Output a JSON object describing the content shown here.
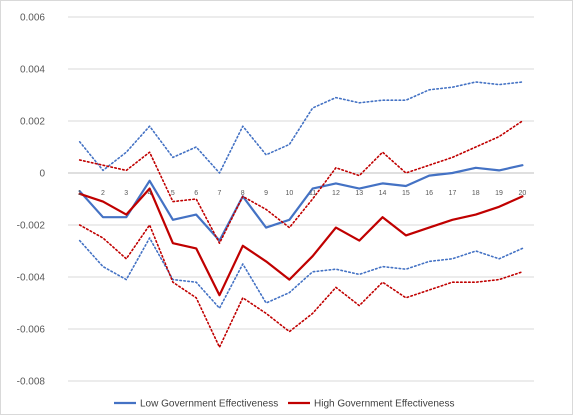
{
  "chart_data": {
    "type": "line",
    "x": [
      "1",
      "2",
      "3",
      "4",
      "5",
      "6",
      "7",
      "8",
      "9",
      "10",
      "11",
      "12",
      "13",
      "14",
      "15",
      "16",
      "17",
      "18",
      "19",
      "20"
    ],
    "ylim": [
      -0.008,
      0.006
    ],
    "yticks": [
      0.006,
      0.004,
      0.002,
      0,
      -0.002,
      -0.004,
      -0.006,
      -0.008
    ],
    "ytick_labels": [
      "0.006",
      "0.004",
      "0.002",
      "0",
      "-0.002",
      "-0.004",
      "-0.006",
      "-0.008"
    ],
    "grid": "horizontal",
    "legend_position": "bottom",
    "title": "",
    "xlabel": "",
    "ylabel": "",
    "series": [
      {
        "name": "Low Government Effectiveness",
        "color": "#4472c4",
        "style": "solid",
        "values": [
          -0.0007,
          -0.0017,
          -0.0017,
          -0.0003,
          -0.0018,
          -0.0016,
          -0.0026,
          -0.0009,
          -0.0021,
          -0.0018,
          -0.0006,
          -0.0004,
          -0.0006,
          -0.0004,
          -0.0005,
          -0.0001,
          0.0,
          0.0002,
          0.0001,
          0.0003
        ]
      },
      {
        "color": "#4472c4",
        "style": "dotted",
        "values": [
          0.0012,
          0.0001,
          0.0008,
          0.0018,
          0.0006,
          0.001,
          0.0,
          0.0018,
          0.0007,
          0.0011,
          0.0025,
          0.0029,
          0.0027,
          0.0028,
          0.0028,
          0.0032,
          0.0033,
          0.0035,
          0.0034,
          0.0035
        ]
      },
      {
        "color": "#4472c4",
        "style": "dotted",
        "values": [
          -0.0026,
          -0.0036,
          -0.0041,
          -0.0025,
          -0.0041,
          -0.0042,
          -0.0052,
          -0.0035,
          -0.005,
          -0.0046,
          -0.0038,
          -0.0037,
          -0.0039,
          -0.0036,
          -0.0037,
          -0.0034,
          -0.0033,
          -0.003,
          -0.0033,
          -0.0029
        ]
      },
      {
        "name": "High Government Effectiveness",
        "color": "#c00000",
        "style": "solid",
        "values": [
          -0.0008,
          -0.0011,
          -0.0016,
          -0.0006,
          -0.0027,
          -0.0029,
          -0.0047,
          -0.0028,
          -0.0034,
          -0.0041,
          -0.0032,
          -0.0021,
          -0.0026,
          -0.0017,
          -0.0024,
          -0.0021,
          -0.0018,
          -0.0016,
          -0.0013,
          -0.0009
        ]
      },
      {
        "color": "#c00000",
        "style": "dotted",
        "values": [
          0.0005,
          0.0003,
          0.0001,
          0.0008,
          -0.0011,
          -0.001,
          -0.0027,
          -0.0009,
          -0.0014,
          -0.0021,
          -0.001,
          0.0002,
          -0.0001,
          0.0008,
          0.0,
          0.0003,
          0.0006,
          0.001,
          0.0014,
          0.002
        ]
      },
      {
        "color": "#c00000",
        "style": "dotted",
        "values": [
          -0.002,
          -0.0025,
          -0.0033,
          -0.002,
          -0.0042,
          -0.0048,
          -0.0067,
          -0.0048,
          -0.0054,
          -0.0061,
          -0.0054,
          -0.0044,
          -0.0051,
          -0.0042,
          -0.0048,
          -0.0045,
          -0.0042,
          -0.0042,
          -0.0041,
          -0.0038
        ]
      }
    ]
  }
}
